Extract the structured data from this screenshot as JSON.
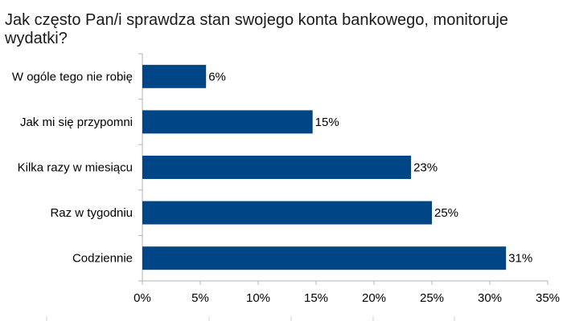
{
  "chart_data": {
    "type": "bar",
    "orientation": "horizontal",
    "title": "Jak często Pan/i sprawdza stan swojego konta bankowego, monitoruje wydatki?",
    "categories": [
      "W ogóle tego nie robię",
      "Jak mi się przypomni",
      "Kilka razy w miesiącu",
      "Raz w tygodniu",
      "Codziennie"
    ],
    "values": [
      5.5,
      14.7,
      23.2,
      25.0,
      31.4
    ],
    "data_labels": [
      "6%",
      "15%",
      "23%",
      "25%",
      "31%"
    ],
    "xlim": [
      0,
      35
    ],
    "x_ticks": [
      0,
      5,
      10,
      15,
      20,
      25,
      30,
      35
    ],
    "x_tick_labels": [
      "0%",
      "5%",
      "10%",
      "15%",
      "20%",
      "25%",
      "30%",
      "35%"
    ],
    "bar_color": "#004586",
    "grid": false,
    "legend": "none"
  }
}
